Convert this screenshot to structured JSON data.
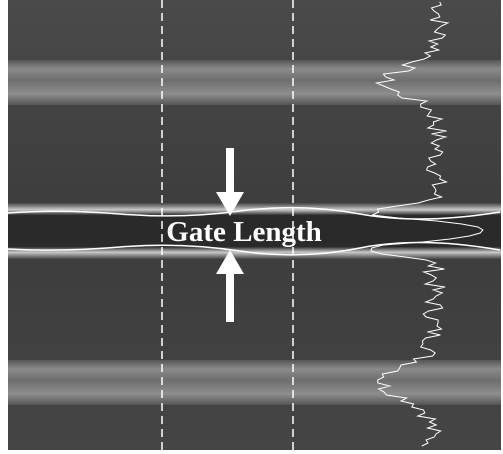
{
  "label": "Gate Length"
}
